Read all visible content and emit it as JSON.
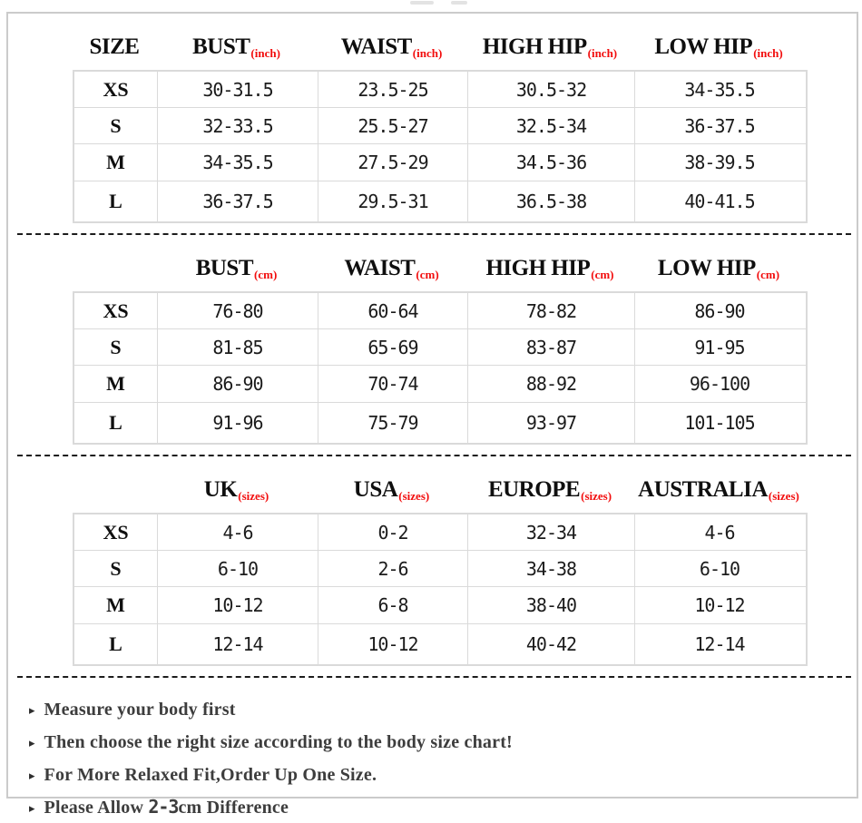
{
  "colors": {
    "accent_red": "#f20d0d",
    "header_text": "#0f0f0f",
    "cell_text": "#1b1b1b",
    "note_text": "#3d3d3d",
    "table_border": "#dadada",
    "frame_border": "#cbcbcb",
    "divider": "#1c1c1c"
  },
  "size_column_header": "SIZE",
  "tables": [
    {
      "name": "body-measurements-inches",
      "columns": [
        {
          "label": "BUST",
          "unit": "(inch)"
        },
        {
          "label": "WAIST",
          "unit": "(inch)"
        },
        {
          "label": "HIGH HIP",
          "unit": "(inch)"
        },
        {
          "label": "LOW HIP",
          "unit": "(inch)"
        }
      ],
      "rows": [
        {
          "size": "XS",
          "values": [
            "30-31.5",
            "23.5-25",
            "30.5-32",
            "34-35.5"
          ]
        },
        {
          "size": "S",
          "values": [
            "32-33.5",
            "25.5-27",
            "32.5-34",
            "36-37.5"
          ]
        },
        {
          "size": "M",
          "values": [
            "34-35.5",
            "27.5-29",
            "34.5-36",
            "38-39.5"
          ]
        },
        {
          "size": "L",
          "values": [
            "36-37.5",
            "29.5-31",
            "36.5-38",
            "40-41.5"
          ]
        }
      ]
    },
    {
      "name": "body-measurements-cm",
      "columns": [
        {
          "label": "BUST",
          "unit": "(cm)"
        },
        {
          "label": "WAIST",
          "unit": "(cm)"
        },
        {
          "label": "HIGH HIP",
          "unit": "(cm)"
        },
        {
          "label": "LOW HIP",
          "unit": "(cm)"
        }
      ],
      "rows": [
        {
          "size": "XS",
          "values": [
            "76-80",
            "60-64",
            "78-82",
            "86-90"
          ]
        },
        {
          "size": "S",
          "values": [
            "81-85",
            "65-69",
            "83-87",
            "91-95"
          ]
        },
        {
          "size": "M",
          "values": [
            "86-90",
            "70-74",
            "88-92",
            "96-100"
          ]
        },
        {
          "size": "L",
          "values": [
            "91-96",
            "75-79",
            "93-97",
            "101-105"
          ]
        }
      ]
    },
    {
      "name": "international-size-conversion",
      "columns": [
        {
          "label": "UK",
          "unit": "(sizes)"
        },
        {
          "label": "USA",
          "unit": "(sizes)"
        },
        {
          "label": "EUROPE",
          "unit": "(sizes)"
        },
        {
          "label": "AUSTRALIA",
          "unit": "(sizes)"
        }
      ],
      "rows": [
        {
          "size": "XS",
          "values": [
            "4-6",
            "0-2",
            "32-34",
            "4-6"
          ]
        },
        {
          "size": "S",
          "values": [
            "6-10",
            "2-6",
            "34-38",
            "6-10"
          ]
        },
        {
          "size": "M",
          "values": [
            "10-12",
            "6-8",
            "38-40",
            "10-12"
          ]
        },
        {
          "size": "L",
          "values": [
            "12-14",
            "10-12",
            "40-42",
            "12-14"
          ]
        }
      ]
    }
  ],
  "bullet_icon": "▸",
  "notes": [
    {
      "pre": "Measure your body first",
      "mono": "",
      "post": ""
    },
    {
      "pre": "Then choose the right size according to the body size chart!",
      "mono": "",
      "post": ""
    },
    {
      "pre": "For More Relaxed Fit,Order Up One Size.",
      "mono": "",
      "post": ""
    },
    {
      "pre": "Please Allow ",
      "mono": "2-3",
      "post": "cm Difference"
    }
  ]
}
